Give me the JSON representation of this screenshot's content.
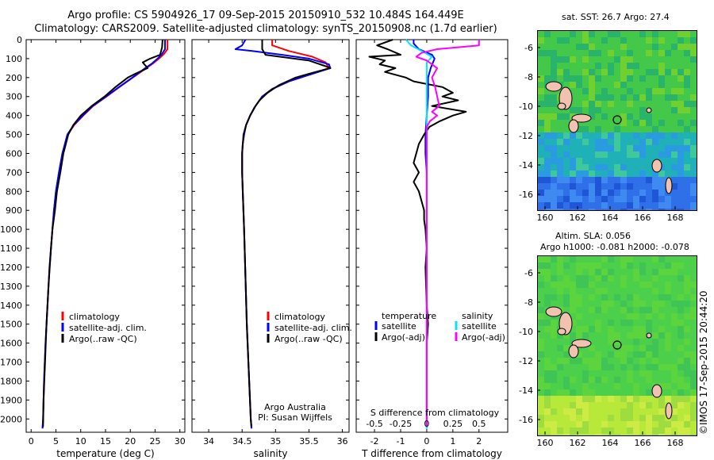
{
  "header": {
    "line1": "Argo profile: CS 5904926_17 09-Sep-2015 20150910_532 10.484S 164.449E",
    "line2": "Climatology: CARS2009. Satellite-adjusted climatology: synTS_20150908.nc (1.7d earlier)"
  },
  "maps": {
    "sst_title": "sat. SST: 26.7 Argo: 27.4",
    "sla_title1": "Altim. SLA: 0.056",
    "sla_title2": "Argo h1000: -0.081 h2000: -0.078",
    "yticks": [
      "-6",
      "-8",
      "-10",
      "-12",
      "-14",
      "-16"
    ],
    "xticks": [
      "160",
      "162",
      "164",
      "166",
      "168"
    ]
  },
  "credit": "©IMOS 17-Sep-2015 20:44:20",
  "colors": {
    "clim": "#ff0000",
    "sat": "#0000ff",
    "argo": "#000000",
    "sal_sat": "#00e5ff",
    "sal_argo": "#ff00ff",
    "island": "#f2c2b0"
  },
  "chart_data": [
    {
      "type": "line",
      "xlabel": "temperature (deg C)",
      "xticks": [
        "0",
        "5",
        "10",
        "15",
        "20",
        "25",
        "30"
      ],
      "xlim": [
        -1,
        31
      ],
      "ylim": [
        0,
        2070
      ],
      "yticks": [
        "0",
        "100",
        "200",
        "300",
        "400",
        "500",
        "600",
        "700",
        "800",
        "900",
        "1000",
        "1100",
        "1200",
        "1300",
        "1400",
        "1500",
        "1600",
        "1700",
        "1800",
        "1900",
        "2000"
      ],
      "legend": [
        "climatology",
        "satellite-adj. clim.",
        "Argo(..raw -QC)"
      ],
      "series": [
        {
          "depth": [
            0,
            50,
            75,
            100,
            125,
            150,
            200,
            250,
            300,
            350,
            400,
            450,
            500,
            600,
            700,
            800,
            900,
            1000,
            1200,
            1400,
            1600,
            1800,
            2000,
            2050
          ],
          "values": [
            27.5,
            27.5,
            26.8,
            25.8,
            24.6,
            23.2,
            20.5,
            17.8,
            15.2,
            12.5,
            10.5,
            8.7,
            7.4,
            6.3,
            5.6,
            5.0,
            4.6,
            4.3,
            3.7,
            3.3,
            2.9,
            2.6,
            2.4,
            2.3
          ]
        },
        {
          "depth": [
            0,
            50,
            75,
            100,
            125,
            150,
            200,
            250,
            300,
            350,
            400,
            450,
            500,
            600,
            700,
            800,
            900,
            1000,
            1200,
            1400,
            1600,
            1800,
            2000,
            2050
          ],
          "values": [
            27.0,
            27.0,
            26.4,
            25.5,
            24.4,
            23.0,
            20.4,
            17.7,
            15.1,
            12.4,
            10.4,
            8.6,
            7.3,
            6.3,
            5.6,
            5.0,
            4.6,
            4.3,
            3.7,
            3.3,
            2.9,
            2.6,
            2.4,
            2.3
          ]
        },
        {
          "depth": [
            0,
            40,
            80,
            100,
            120,
            150,
            180,
            200,
            250,
            300,
            350,
            400,
            450,
            500,
            600,
            700,
            800,
            900,
            1000,
            1100,
            1300,
            1500,
            1700,
            1900,
            2040
          ],
          "values": [
            26.5,
            26.4,
            26.0,
            24.0,
            22.5,
            23.5,
            21.0,
            19.5,
            17.0,
            14.8,
            12.2,
            10.0,
            8.5,
            7.5,
            6.5,
            5.9,
            5.2,
            4.8,
            4.3,
            4.0,
            3.5,
            3.1,
            2.8,
            2.5,
            2.4
          ]
        }
      ]
    },
    {
      "type": "line",
      "xlabel": "salinity",
      "xticks": [
        "34",
        "34.5",
        "35",
        "35.5",
        "36"
      ],
      "xlim": [
        33.75,
        36.1
      ],
      "legend": [
        "climatology",
        "satellite-adj. clim.",
        "Argo(..raw -QC)"
      ],
      "annotation": [
        "Argo Australia",
        "PI: Susan Wijffels"
      ],
      "series": [
        {
          "depth": [
            0,
            30,
            60,
            90,
            120,
            150,
            180,
            220,
            260,
            300,
            350,
            400,
            450,
            500,
            550,
            600,
            700,
            800,
            1000,
            1500,
            2000,
            2050
          ],
          "values": [
            34.95,
            34.95,
            35.2,
            35.55,
            35.75,
            35.8,
            35.55,
            35.2,
            34.95,
            34.8,
            34.7,
            34.62,
            34.56,
            34.53,
            34.51,
            34.5,
            34.5,
            34.51,
            34.53,
            34.57,
            34.63,
            34.64
          ]
        },
        {
          "depth": [
            0,
            30,
            50,
            60,
            80,
            100,
            130,
            150,
            180,
            220,
            260,
            300,
            350,
            400,
            450,
            500,
            550,
            600,
            700,
            800,
            1000,
            1500,
            2000,
            2050
          ],
          "values": [
            34.55,
            34.5,
            34.4,
            34.65,
            35.1,
            35.5,
            35.8,
            35.82,
            35.55,
            35.2,
            34.95,
            34.8,
            34.7,
            34.62,
            34.56,
            34.53,
            34.51,
            34.5,
            34.5,
            34.51,
            34.53,
            34.57,
            34.63,
            34.64
          ]
        },
        {
          "depth": [
            0,
            50,
            80,
            110,
            140,
            150,
            170,
            200,
            240,
            280,
            320,
            360,
            400,
            450,
            500,
            600,
            700,
            800,
            1000,
            1500,
            2000,
            2040
          ],
          "values": [
            34.8,
            34.8,
            34.85,
            35.5,
            35.75,
            35.82,
            35.6,
            35.3,
            35.05,
            34.88,
            34.76,
            34.68,
            34.62,
            34.56,
            34.52,
            34.5,
            34.5,
            34.51,
            34.53,
            34.57,
            34.63,
            34.64
          ]
        }
      ]
    },
    {
      "type": "line",
      "xlabel": "T difference from climatology",
      "xlabel_top": "S difference from climatology",
      "xticks": [
        "-2",
        "-1",
        "0",
        "1",
        "2"
      ],
      "xticks_top": [
        "-0.5",
        "-0.25",
        "0",
        "0.25",
        "0.5"
      ],
      "xlim": [
        -2.7,
        3.1
      ],
      "legend_left": [
        "temperature",
        "satellite",
        "Argo(-adj)"
      ],
      "legend_right": [
        "salinity",
        "satellite",
        "Argo(-adj)"
      ],
      "series": [
        {
          "depth": [
            0,
            20,
            50,
            80,
            100,
            150,
            200,
            300,
            400,
            500,
            600,
            700,
            800,
            1000,
            1500,
            2000,
            2050
          ],
          "values": [
            -0.5,
            -0.5,
            -0.3,
            0.2,
            0.3,
            0.15,
            0.05,
            0.05,
            0.0,
            -0.05,
            -0.05,
            0.0,
            0.0,
            0.0,
            0.0,
            0.0,
            0.0
          ]
        },
        {
          "depth": [
            0,
            30,
            50,
            80,
            90,
            110,
            130,
            150,
            170,
            200,
            220,
            250,
            280,
            300,
            320,
            350,
            380,
            400,
            430,
            460,
            500,
            550,
            600,
            650,
            700,
            750,
            800,
            850,
            900,
            950,
            1000,
            1100,
            1200,
            1400,
            1500,
            1600,
            1800,
            2000,
            2040
          ],
          "values": [
            -1.3,
            -1.9,
            -1.5,
            -1.0,
            -2.2,
            -1.6,
            -1.8,
            -1.2,
            -1.6,
            -0.8,
            -0.5,
            0.6,
            1.0,
            0.6,
            1.2,
            0.2,
            1.5,
            1.0,
            0.5,
            0.1,
            -0.1,
            -0.3,
            -0.4,
            -0.5,
            -0.3,
            -0.5,
            -0.3,
            -0.2,
            -0.1,
            -0.1,
            -0.05,
            0.0,
            -0.05,
            0.0,
            0.05,
            0.0,
            0.0,
            0.0,
            0.0
          ]
        },
        {
          "depth": [
            0,
            30,
            60,
            90,
            120,
            150,
            200,
            300,
            400,
            500,
            600,
            700,
            800,
            1000,
            1500,
            2000,
            2050
          ],
          "values": [
            -0.2,
            -0.15,
            -0.05,
            0.05,
            0.0,
            0.0,
            0.0,
            0.0,
            0.0,
            0.0,
            0.0,
            0.0,
            0.0,
            0.0,
            0.0,
            0.0,
            0.0
          ]
        },
        {
          "depth": [
            0,
            30,
            50,
            70,
            90,
            110,
            130,
            150,
            200,
            250,
            300,
            350,
            380,
            400,
            430,
            460,
            500,
            600,
            700,
            800,
            1000,
            1500,
            2000,
            2040
          ],
          "values": [
            0.5,
            0.5,
            0.1,
            -0.05,
            -0.1,
            0.0,
            0.05,
            0.1,
            0.05,
            0.08,
            0.1,
            0.12,
            0.05,
            0.1,
            0.03,
            0.0,
            0.0,
            0.0,
            0.0,
            0.0,
            0.0,
            0.0,
            0.0,
            0.0
          ]
        }
      ]
    }
  ]
}
